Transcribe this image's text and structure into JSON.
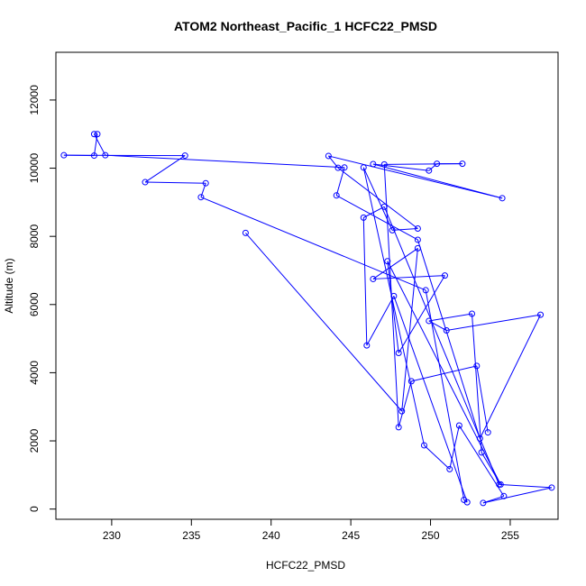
{
  "chart_data": {
    "type": "line",
    "title": "ATOM2 Northeast_Pacific_1 HCFC22_PMSD",
    "xlabel": "HCFC22_PMSD",
    "ylabel": "Altitude (m)",
    "xlim": [
      226.5,
      258.0
    ],
    "ylim": [
      -300,
      13400
    ],
    "x_ticks": [
      230,
      235,
      240,
      245,
      250,
      255
    ],
    "y_ticks": [
      0,
      2000,
      4000,
      6000,
      8000,
      10000,
      12000
    ],
    "x_tick_labels": [
      "230",
      "235",
      "240",
      "245",
      "250",
      "255"
    ],
    "y_tick_labels": [
      "0",
      "2000",
      "4000",
      "6000",
      "8000",
      "10000",
      "12000"
    ],
    "colors": {
      "series": "#0000ff",
      "axis": "#000000"
    },
    "grid": false,
    "legend": "none",
    "markers": "open-circle",
    "series": [
      {
        "x": [
          238.4,
          248.2,
          249.2,
          246.4,
          250.9,
          248.0,
          247.3,
          254.4,
          253.2,
          252.6,
          249.9,
          251.0,
          256.9,
          253.1,
          249.2,
          244.1,
          244.6,
          229.6,
          228.9,
          229.1,
          228.9,
          227.0,
          234.6,
          232.1,
          235.9,
          235.6,
          249.7,
          252.1,
          252.3,
          247.7,
          246.0,
          245.8,
          247.1,
          254.3,
          257.6,
          253.3,
          254.6,
          251.8,
          251.2,
          249.6,
          245.8,
          247.6,
          249.2,
          244.2,
          243.6,
          254.5,
          246.4,
          249.9,
          250.4,
          252.0,
          247.1,
          248.0,
          248.8,
          252.9,
          253.6
        ],
        "y": [
          8100,
          2870,
          7650,
          6750,
          6850,
          4580,
          7270,
          720,
          1660,
          5730,
          5520,
          5240,
          5700,
          2070,
          7900,
          9200,
          10020,
          10380,
          11000,
          11000,
          10370,
          10380,
          10370,
          9590,
          9560,
          9150,
          6420,
          270,
          200,
          6250,
          4800,
          8550,
          8870,
          720,
          630,
          180,
          380,
          2450,
          1170,
          1870,
          10020,
          8180,
          8230,
          10010,
          10360,
          9120,
          10120,
          9930,
          10130,
          10130,
          10110,
          2400,
          3750,
          4200,
          2250
        ]
      }
    ]
  }
}
